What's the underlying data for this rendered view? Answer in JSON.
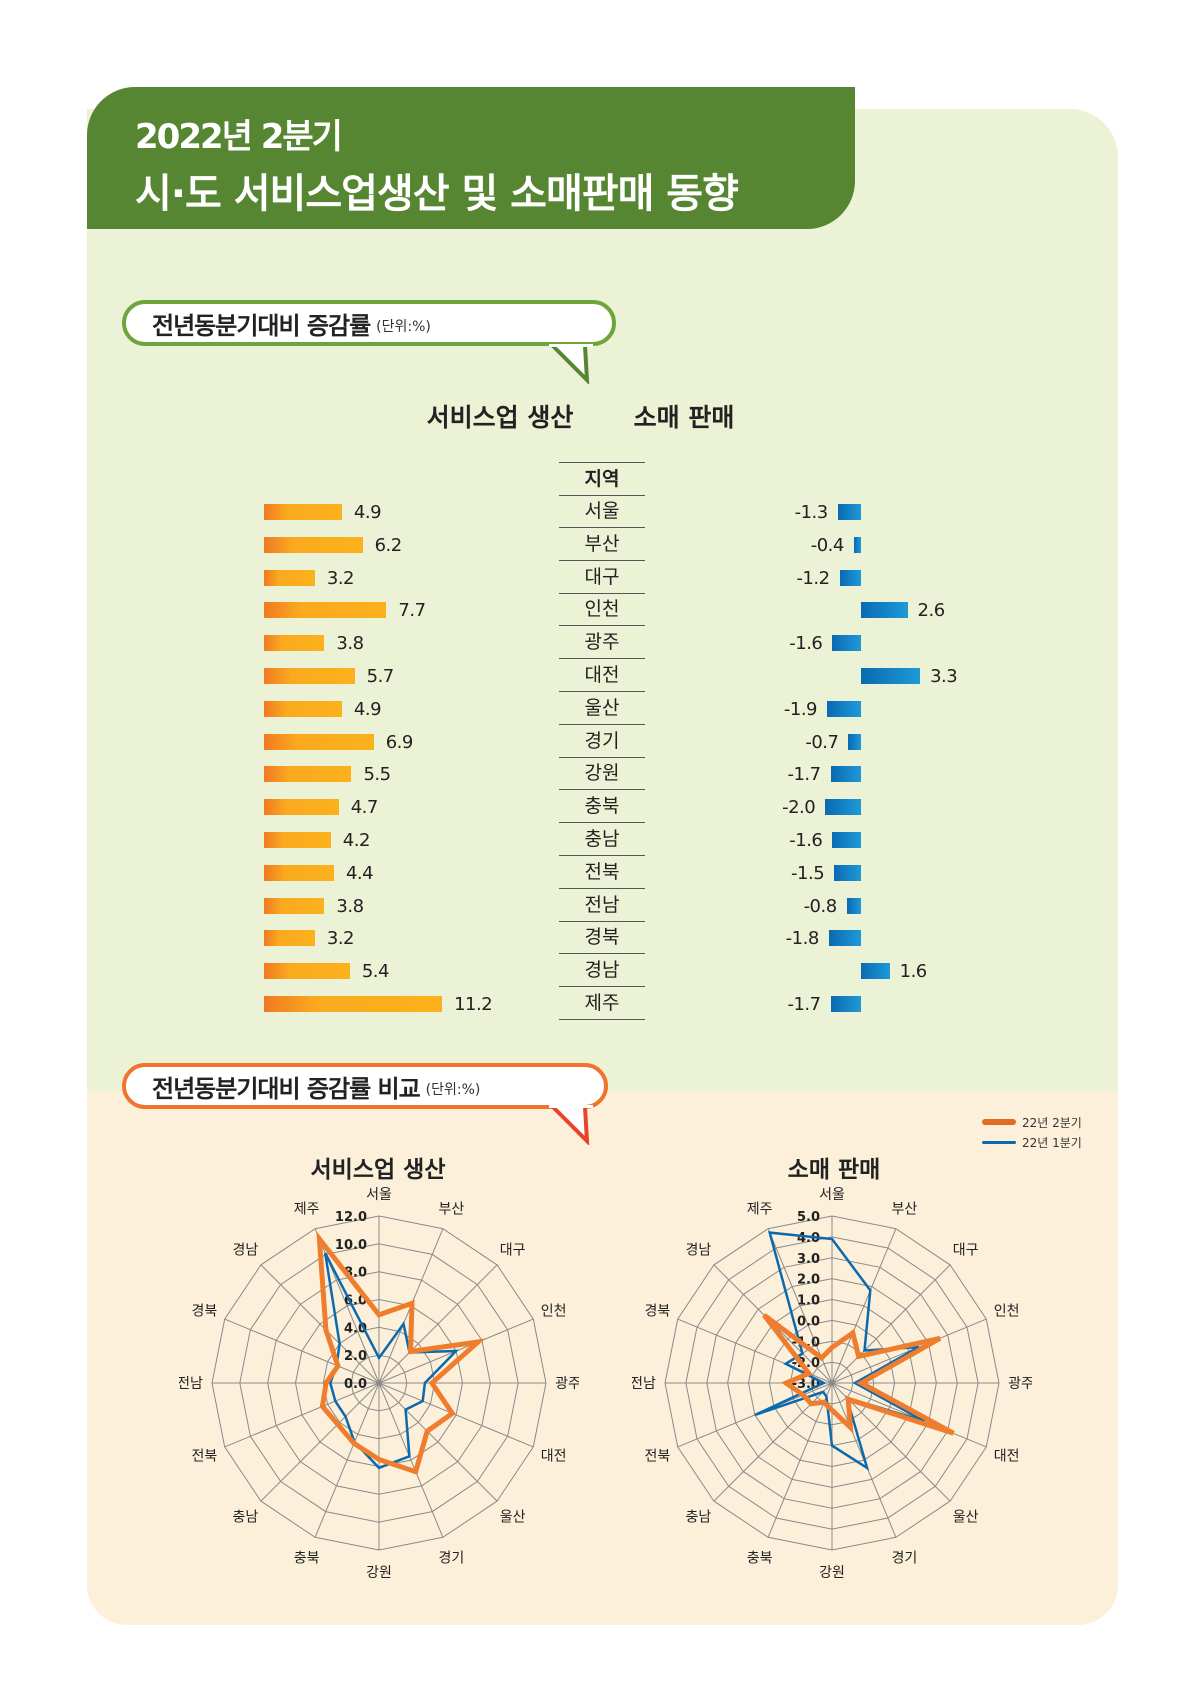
{
  "header": {
    "line1": "2022년 2분기",
    "line2": "시·도 서비스업생산 및 소매판매 동향"
  },
  "section1": {
    "title": "전년동분기대비 증감률",
    "unit": "(단위:%)",
    "left_title": "서비스업 생산",
    "right_title": "소매 판매",
    "region_header": "지역"
  },
  "section2": {
    "title": "전년동분기대비 증감률 비교",
    "unit": "(단위:%)"
  },
  "colors": {
    "header_green": "#568632",
    "service_bar": "#fbaa1e",
    "retail_bar": "#1e9ad8",
    "q2_line": "#ef7d2e",
    "q1_line": "#0b6aad"
  },
  "chart_data": [
    {
      "type": "bar",
      "title": "서비스업 생산",
      "orientation": "horizontal",
      "categories": [
        "서울",
        "부산",
        "대구",
        "인천",
        "광주",
        "대전",
        "울산",
        "경기",
        "강원",
        "충북",
        "충남",
        "전북",
        "전남",
        "경북",
        "경남",
        "제주"
      ],
      "values": [
        4.9,
        6.2,
        3.2,
        7.7,
        3.8,
        5.7,
        4.9,
        6.9,
        5.5,
        4.7,
        4.2,
        4.4,
        3.8,
        3.2,
        5.4,
        11.2
      ],
      "labels": [
        "4.9",
        "6.2",
        "3.2",
        "7.7",
        "3.8",
        "5.7",
        "4.9",
        "6.9",
        "5.5",
        "4.7",
        "4.2",
        "4.4",
        "3.8",
        "3.2",
        "5.4",
        "11.2"
      ]
    },
    {
      "type": "bar",
      "title": "소매 판매",
      "orientation": "horizontal",
      "categories": [
        "서울",
        "부산",
        "대구",
        "인천",
        "광주",
        "대전",
        "울산",
        "경기",
        "강원",
        "충북",
        "충남",
        "전북",
        "전남",
        "경북",
        "경남",
        "제주"
      ],
      "values": [
        -1.3,
        -0.4,
        -1.2,
        2.6,
        -1.6,
        3.3,
        -1.9,
        -0.7,
        -1.7,
        -2.0,
        -1.6,
        -1.5,
        -0.8,
        -1.8,
        1.6,
        -1.7
      ],
      "labels": [
        "-1.3",
        "-0.4",
        "-1.2",
        "2.6",
        "-1.6",
        "3.3",
        "-1.9",
        "-0.7",
        "-1.7",
        "-2.0",
        "-1.6",
        "-1.5",
        "-0.8",
        "-1.8",
        "1.6",
        "-1.7"
      ]
    },
    {
      "type": "radar",
      "title": "서비스업 생산",
      "categories": [
        "서울",
        "부산",
        "대구",
        "인천",
        "광주",
        "대전",
        "울산",
        "경기",
        "강원",
        "충북",
        "충남",
        "전북",
        "전남",
        "경북",
        "경남",
        "제주"
      ],
      "rlim": [
        0,
        12
      ],
      "ticks": [
        "0.0",
        "2.0",
        "4.0",
        "6.0",
        "8.0",
        "10.0",
        "12.0"
      ],
      "series": [
        {
          "name": "22년 2분기",
          "values": [
            4.9,
            6.2,
            3.2,
            7.7,
            3.8,
            5.7,
            4.9,
            6.9,
            5.5,
            4.7,
            4.2,
            4.4,
            3.8,
            3.2,
            5.4,
            11.2
          ]
        },
        {
          "name": "22년 1분기",
          "values": [
            1.8,
            4.6,
            3.1,
            6.0,
            3.3,
            3.4,
            2.7,
            5.7,
            6.1,
            4.6,
            3.4,
            3.4,
            3.5,
            3.3,
            4.0,
            10.1
          ]
        }
      ]
    },
    {
      "type": "radar",
      "title": "소매 판매",
      "categories": [
        "서울",
        "부산",
        "대구",
        "인천",
        "광주",
        "대전",
        "울산",
        "경기",
        "강원",
        "충북",
        "충남",
        "전북",
        "전남",
        "경북",
        "경남",
        "제주"
      ],
      "rlim": [
        -3,
        5
      ],
      "ticks": [
        "-3.0",
        "-2.0",
        "-1.0",
        "0.0",
        "1.0",
        "2.0",
        "3.0",
        "4.0",
        "5.0"
      ],
      "series": [
        {
          "name": "22년 2분기",
          "values": [
            -1.3,
            -0.4,
            -1.2,
            2.6,
            -1.6,
            3.3,
            -1.9,
            -0.7,
            -1.7,
            -2.0,
            -1.6,
            -1.5,
            -0.8,
            -1.8,
            1.6,
            -1.7
          ]
        },
        {
          "name": "22년 1분기",
          "values": [
            3.9,
            1.8,
            -0.8,
            1.5,
            -1.9,
            1.8,
            -2.0,
            1.4,
            0.0,
            -2.3,
            -2.4,
            1.0,
            -2.6,
            -0.6,
            -1.0,
            4.8
          ]
        }
      ]
    }
  ],
  "legend": [
    {
      "label": "22년 2분기"
    },
    {
      "label": "22년 1분기"
    }
  ]
}
